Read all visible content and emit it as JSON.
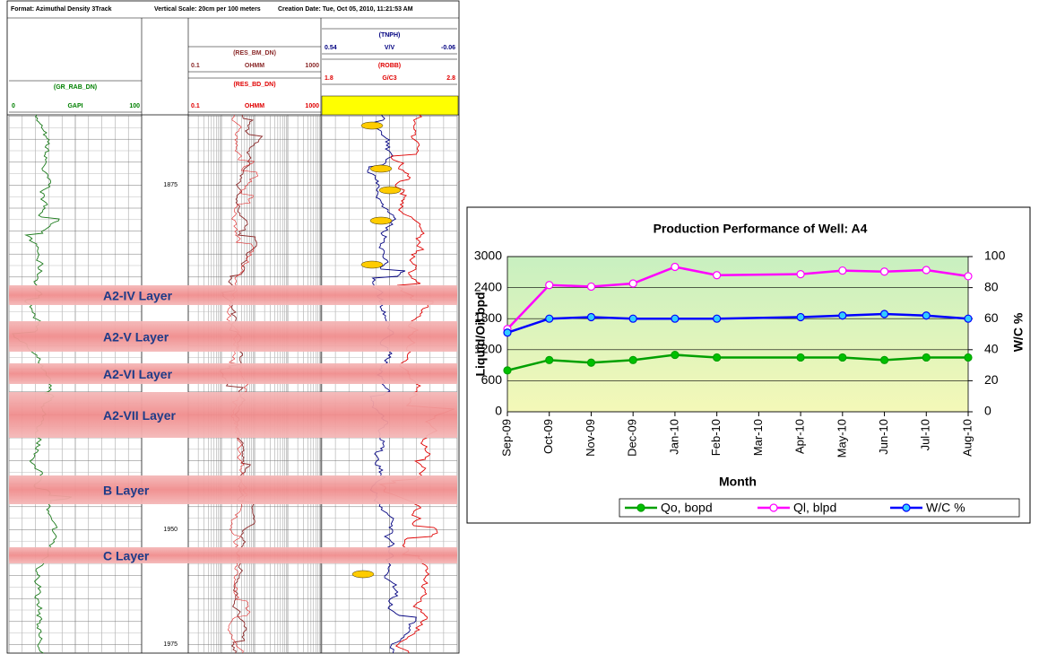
{
  "log_header": {
    "format": "Format: Azimuthal Density 3Track",
    "scale": "Vertical Scale: 20cm per 100 meters",
    "created": "Creation Date: Tue, Oct 05, 2010, 11:21:53 AM"
  },
  "curves": [
    {
      "name": "(TNPH)",
      "left": 0.54,
      "unit": "V/V",
      "right": -0.06
    },
    {
      "name": "(ROBB)",
      "left": 1.8,
      "unit": "G/C3",
      "right": 2.8
    },
    {
      "name": "(RES_BM_DN)",
      "left": 0.1,
      "unit": "OHMM",
      "right": 1000
    },
    {
      "name": "(RES_BD_DN)",
      "left": 0.1,
      "unit": "OHMM",
      "right": 1000
    },
    {
      "name": "(GR_RAB_DN)",
      "left": 0,
      "unit": "GAPI",
      "right": 100
    }
  ],
  "depths": [
    1875,
    1950,
    1975
  ],
  "layers": [
    "A2-IV  Layer",
    "A2-V  Layer",
    "A2-VI Layer",
    "A2-VII Layer",
    "B  Layer",
    "C  Layer"
  ],
  "chart_data": {
    "type": "line",
    "title": "Production Performance of Well: A4",
    "x": [
      "Sep-09",
      "Oct-09",
      "Nov-09",
      "Dec-09",
      "Jan-10",
      "Feb-10",
      "Apr-10",
      "May-10",
      "Jun-10",
      "Jul-10",
      "Aug-10"
    ],
    "xticks": [
      "Sep-09",
      "Oct-09",
      "Nov-09",
      "Dec-09",
      "Jan-10",
      "Feb-10",
      "Mar-10",
      "Apr-10",
      "May-10",
      "Jun-10",
      "Jul-10",
      "Aug-10"
    ],
    "xlabel": "Month",
    "ylabel": "Liquid/Oil bpd",
    "y2label": "W/C %",
    "ylim": [
      0,
      3000
    ],
    "yticks": [
      0,
      600,
      1200,
      1800,
      2400,
      3000
    ],
    "y2lim": [
      0,
      100
    ],
    "y2ticks": [
      0,
      20,
      40,
      60,
      80,
      100
    ],
    "grid": true,
    "legend": "bottom",
    "series": [
      {
        "name": "Qo, bopd",
        "color": "#00a000",
        "marker_fill": "#00c000",
        "values": [
          800,
          1000,
          950,
          1000,
          1100,
          1050,
          1050,
          1050,
          1000,
          1050,
          1050
        ]
      },
      {
        "name": "Ql, blpd",
        "color": "#ff00ff",
        "marker_fill": "#ffffff",
        "values": [
          1600,
          2450,
          2420,
          2480,
          2800,
          2640,
          2660,
          2730,
          2710,
          2740,
          2620
        ]
      },
      {
        "name": "W/C %",
        "color": "#0000ff",
        "marker_fill": "#33ccff",
        "axis": "y2",
        "values": [
          51,
          60,
          61,
          60,
          60,
          60,
          61,
          62,
          63,
          62,
          60
        ]
      }
    ]
  }
}
